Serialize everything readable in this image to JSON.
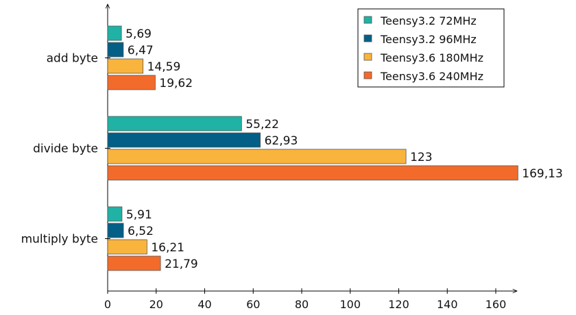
{
  "chart_data": {
    "type": "bar",
    "orientation": "horizontal",
    "categories": [
      "add byte",
      "divide byte",
      "multiply byte"
    ],
    "series": [
      {
        "name": "Teensy3.2 72MHz",
        "color": "#1fb2a5",
        "values": [
          5.69,
          55.22,
          5.91
        ],
        "labels": [
          "5,69",
          "55,22",
          "5,91"
        ]
      },
      {
        "name": "Teensy3.2 96MHz",
        "color": "#035f86",
        "values": [
          6.47,
          62.93,
          6.52
        ],
        "labels": [
          "6,47",
          "62,93",
          "6,52"
        ]
      },
      {
        "name": "Teensy3.6 180MHz",
        "color": "#f9b43d",
        "values": [
          14.59,
          123,
          16.21
        ],
        "labels": [
          "14,59",
          "123",
          "16,21"
        ]
      },
      {
        "name": "Teensy3.6 240MHz",
        "color": "#f26b2a",
        "values": [
          19.62,
          169.13,
          21.79
        ],
        "labels": [
          "19,62",
          "169,13",
          "21,79"
        ]
      }
    ],
    "x_ticks": [
      "0",
      "20",
      "40",
      "60",
      "80",
      "100",
      "120",
      "140",
      "160"
    ],
    "xlim": [
      0,
      170
    ],
    "title": "",
    "xlabel": "",
    "ylabel": "",
    "grid": false,
    "legend_position": "top-right"
  }
}
